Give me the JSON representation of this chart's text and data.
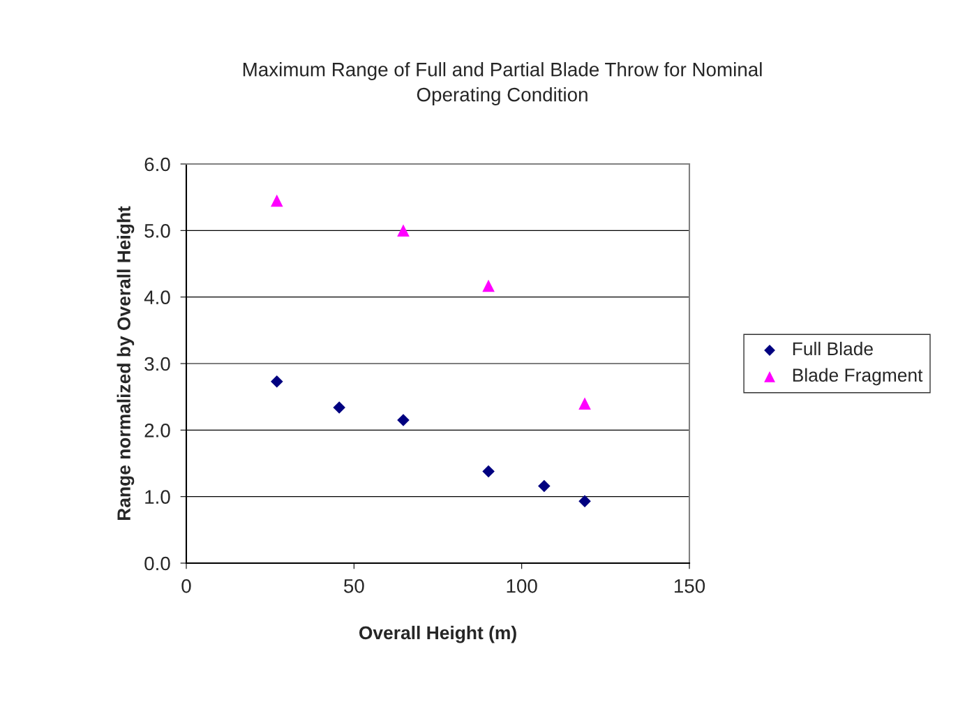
{
  "chart_data": {
    "type": "scatter",
    "title": "Maximum Range of Full and Partial Blade Throw for Nominal\nOperating Condition",
    "xlabel": "Overall Height (m)",
    "ylabel": "Range normalized by Overall Height",
    "xlim": [
      0,
      150
    ],
    "xticks": [
      0,
      50,
      100,
      150
    ],
    "ylim": [
      0,
      6
    ],
    "yticks": [
      {
        "value": 0,
        "label": "0.0"
      },
      {
        "value": 1,
        "label": "1.0"
      },
      {
        "value": 2,
        "label": "2.0"
      },
      {
        "value": 3,
        "label": "3.0"
      },
      {
        "value": 4,
        "label": "4.0"
      },
      {
        "value": 5,
        "label": "5.0"
      },
      {
        "value": 6,
        "label": "6.0"
      }
    ],
    "grid": "y",
    "legend": "right",
    "series": [
      {
        "name": "Full Blade",
        "color": "#000080",
        "marker": "diamond",
        "x": [
          27,
          45.6,
          64.7,
          90.1,
          106.7,
          118.8
        ],
        "values": [
          2.73,
          2.34,
          2.15,
          1.38,
          1.16,
          0.93
        ]
      },
      {
        "name": "Blade Fragment",
        "color": "#ff00ff",
        "marker": "triangle",
        "x": [
          27,
          64.7,
          90.1,
          118.8
        ],
        "values": [
          5.45,
          5.0,
          4.17,
          2.4
        ]
      }
    ]
  }
}
